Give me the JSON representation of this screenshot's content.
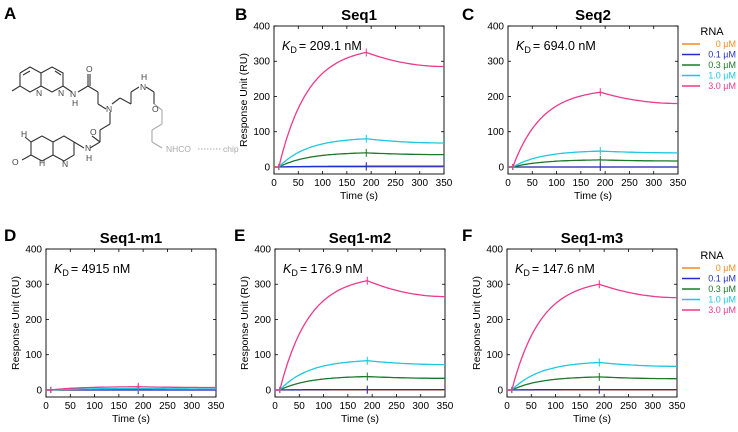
{
  "colors": {
    "0 µM": "#f28c1e",
    "0.1 µM": "#1f2fd6",
    "0.3 µM": "#1a7a2a",
    "1.0 µM": "#1ec8e0",
    "3.0 µM": "#ec3a8c"
  },
  "structure": {
    "letter": "A",
    "labels": {
      "n1": "N",
      "h1": "H",
      "n2": "N",
      "n3": "N",
      "o1": "O",
      "h2": "H",
      "n4": "N",
      "n5": "N",
      "h3": "H",
      "o2": "O",
      "h4": "H",
      "n6": "N",
      "o3": "O",
      "n7": "N",
      "h5": "H",
      "o4": "O",
      "nhco": "NHCO",
      "chip": "chip"
    }
  },
  "chart_data": [
    {
      "panel": "B",
      "type": "line",
      "title": "Seq1",
      "kd_symbol": "K",
      "kd_sub": "D",
      "kd_value": "= 209.1 nM",
      "xlabel": "Time (s)",
      "ylabel": "Response Unit (RU)",
      "xlim": [
        0,
        350
      ],
      "ylim": [
        -20,
        400
      ],
      "xticks": [
        "0",
        "50",
        "100",
        "150",
        "200",
        "250",
        "300",
        "350"
      ],
      "yticks": [
        "0",
        "100",
        "200",
        "300",
        "400"
      ],
      "injection_start": 10,
      "injection_end": 190,
      "end_time": 350,
      "series": [
        {
          "name": "0 µM",
          "peak": 0,
          "final": 0
        },
        {
          "name": "0.1 µM",
          "peak": 2,
          "final": 2
        },
        {
          "name": "0.3 µM",
          "peak": 40,
          "final": 35
        },
        {
          "name": "1.0 µM",
          "peak": 80,
          "final": 68
        },
        {
          "name": "3.0 µM",
          "peak": 325,
          "final": 285
        }
      ]
    },
    {
      "panel": "C",
      "type": "line",
      "title": "Seq2",
      "kd_symbol": "K",
      "kd_sub": "D",
      "kd_value": "= 694.0 nM",
      "xlabel": "Time (s)",
      "ylabel": "",
      "xlim": [
        0,
        350
      ],
      "ylim": [
        -20,
        400
      ],
      "xticks": [
        "0",
        "50",
        "100",
        "150",
        "200",
        "250",
        "300",
        "350"
      ],
      "yticks": [
        "0",
        "100",
        "200",
        "300",
        "400"
      ],
      "injection_start": 10,
      "injection_end": 190,
      "end_time": 350,
      "series": [
        {
          "name": "0 µM",
          "peak": 0,
          "final": 0
        },
        {
          "name": "0.1 µM",
          "peak": 0,
          "final": 0
        },
        {
          "name": "0.3 µM",
          "peak": 20,
          "final": 17
        },
        {
          "name": "1.0 µM",
          "peak": 45,
          "final": 40
        },
        {
          "name": "3.0 µM",
          "peak": 212,
          "final": 180
        }
      ]
    },
    {
      "panel": "D",
      "type": "line",
      "title": "Seq1-m1",
      "kd_symbol": "K",
      "kd_sub": "D",
      "kd_value": "= 4915 nM",
      "xlabel": "Time (s)",
      "ylabel": "Response Unit (RU)",
      "xlim": [
        0,
        350
      ],
      "ylim": [
        -20,
        400
      ],
      "xticks": [
        "0",
        "50",
        "100",
        "150",
        "200",
        "250",
        "300",
        "350"
      ],
      "yticks": [
        "0",
        "100",
        "200",
        "300",
        "400"
      ],
      "injection_start": 10,
      "injection_end": 190,
      "end_time": 350,
      "series": [
        {
          "name": "0 µM",
          "peak": 0,
          "final": 0
        },
        {
          "name": "0.1 µM",
          "peak": 0,
          "final": 0
        },
        {
          "name": "0.3 µM",
          "peak": 2,
          "final": 2
        },
        {
          "name": "1.0 µM",
          "peak": 4,
          "final": 3
        },
        {
          "name": "3.0 µM",
          "peak": 9,
          "final": 7
        }
      ]
    },
    {
      "panel": "E",
      "type": "line",
      "title": "Seq1-m2",
      "kd_symbol": "K",
      "kd_sub": "D",
      "kd_value": "= 176.9 nM",
      "xlabel": "Time (s)",
      "ylabel": "Response Unit (RU)",
      "xlim": [
        0,
        350
      ],
      "ylim": [
        -20,
        400
      ],
      "xticks": [
        "0",
        "50",
        "100",
        "150",
        "200",
        "250",
        "300",
        "350"
      ],
      "yticks": [
        "0",
        "100",
        "200",
        "300",
        "400"
      ],
      "injection_start": 10,
      "injection_end": 190,
      "end_time": 350,
      "series": [
        {
          "name": "0 µM",
          "peak": 0,
          "final": 0
        },
        {
          "name": "0.1 µM",
          "peak": 1,
          "final": 1
        },
        {
          "name": "0.3 µM",
          "peak": 38,
          "final": 33
        },
        {
          "name": "1.0 µM",
          "peak": 83,
          "final": 72
        },
        {
          "name": "3.0 µM",
          "peak": 310,
          "final": 265
        }
      ]
    },
    {
      "panel": "F",
      "type": "line",
      "title": "Seq1-m3",
      "kd_symbol": "K",
      "kd_sub": "D",
      "kd_value": "= 147.6 nM",
      "xlabel": "Time (s)",
      "ylabel": "Response Unit (RU)",
      "xlim": [
        0,
        350
      ],
      "ylim": [
        -20,
        400
      ],
      "xticks": [
        "0",
        "50",
        "100",
        "150",
        "200",
        "250",
        "300",
        "350"
      ],
      "yticks": [
        "0",
        "100",
        "200",
        "300",
        "400"
      ],
      "injection_start": 10,
      "injection_end": 190,
      "end_time": 350,
      "series": [
        {
          "name": "0 µM",
          "peak": 0,
          "final": 0
        },
        {
          "name": "0.1 µM",
          "peak": 1,
          "final": 1
        },
        {
          "name": "0.3 µM",
          "peak": 37,
          "final": 32
        },
        {
          "name": "1.0 µM",
          "peak": 78,
          "final": 67
        },
        {
          "name": "3.0 µM",
          "peak": 300,
          "final": 262
        }
      ]
    }
  ],
  "legends": [
    {
      "title": "RNA",
      "items": [
        "0 µM",
        "0.1 µM",
        "0.3 µM",
        "1.0 µM",
        "3.0 µM"
      ]
    },
    {
      "title": "RNA",
      "items": [
        "0 µM",
        "0.1 µM",
        "0.3 µM",
        "1.0 µM",
        "3.0 µM"
      ]
    }
  ]
}
